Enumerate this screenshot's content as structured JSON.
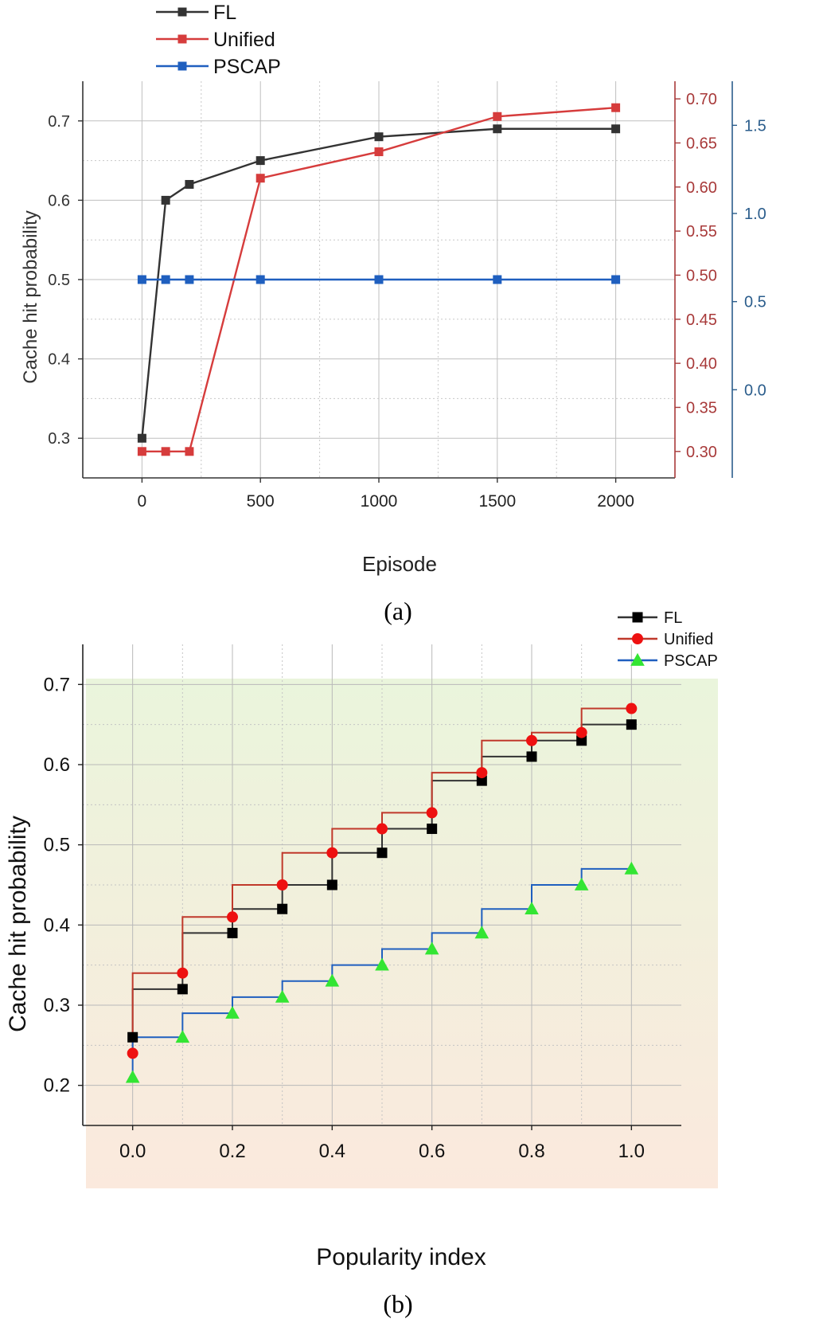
{
  "chart_data": [
    {
      "id": "a",
      "type": "line",
      "caption": "(a)",
      "xlabel": "Episode",
      "ylabel": "Cache hit probability",
      "xlim": [
        -250,
        2250
      ],
      "x_ticks": [
        "0",
        "500",
        "1000",
        "1500",
        "2000"
      ],
      "x_tick_values": [
        0,
        500,
        1000,
        1500,
        2000
      ],
      "ylim": [
        0.25,
        0.75
      ],
      "y_ticks": [
        "0.3",
        "0.4",
        "0.5",
        "0.6",
        "0.7"
      ],
      "y_tick_values": [
        0.3,
        0.4,
        0.5,
        0.6,
        0.7
      ],
      "secondary_axis_red": {
        "ylim": [
          0.27,
          0.72
        ],
        "ticks": [
          "0.30",
          "0.35",
          "0.40",
          "0.45",
          "0.50",
          "0.55",
          "0.60",
          "0.65",
          "0.70"
        ],
        "tick_values": [
          0.3,
          0.35,
          0.4,
          0.45,
          0.5,
          0.55,
          0.6,
          0.65,
          0.7
        ],
        "color": "#a83a3a"
      },
      "secondary_axis_blue": {
        "ylim": [
          -0.5,
          1.75
        ],
        "ticks": [
          "0.0",
          "0.5",
          "1.0",
          "1.5"
        ],
        "tick_values": [
          0.0,
          0.5,
          1.0,
          1.5
        ],
        "color": "#2b5d8c"
      },
      "legend_position": "top-left, outside",
      "grid": true,
      "series": [
        {
          "name": "FL",
          "color": "#333333",
          "marker": "square",
          "axis": "left",
          "x": [
            0,
            100,
            200,
            500,
            1000,
            1500,
            2000
          ],
          "y": [
            0.3,
            0.6,
            0.62,
            0.65,
            0.68,
            0.69,
            0.69
          ]
        },
        {
          "name": "Unified",
          "color": "#d63c3c",
          "marker": "square",
          "axis": "right-red",
          "x": [
            0,
            100,
            200,
            500,
            1000,
            1500,
            2000
          ],
          "y": [
            0.3,
            0.3,
            0.3,
            0.61,
            0.64,
            0.68,
            0.69
          ]
        },
        {
          "name": "PSCAP",
          "color": "#1f5fbf",
          "marker": "square",
          "axis": "left",
          "x": [
            0,
            100,
            200,
            500,
            1000,
            1500,
            2000
          ],
          "y": [
            0.5,
            0.5,
            0.5,
            0.5,
            0.5,
            0.5,
            0.5
          ]
        }
      ]
    },
    {
      "id": "b",
      "type": "line",
      "step": "pre",
      "caption": "(b)",
      "xlabel": "Popularity index",
      "ylabel": "Cache hit probability",
      "xlim": [
        -0.1,
        1.1
      ],
      "x_ticks": [
        "0.0",
        "0.2",
        "0.4",
        "0.6",
        "0.8",
        "1.0"
      ],
      "x_tick_values": [
        0.0,
        0.2,
        0.4,
        0.6,
        0.8,
        1.0
      ],
      "ylim": [
        0.15,
        0.75
      ],
      "y_ticks": [
        "0.2",
        "0.3",
        "0.4",
        "0.5",
        "0.6",
        "0.7"
      ],
      "y_tick_values": [
        0.2,
        0.3,
        0.4,
        0.5,
        0.6,
        0.7
      ],
      "background_gradient": [
        "#eaf5dc",
        "#fbe9dd"
      ],
      "legend_position": "top-right, outside",
      "grid": true,
      "x": [
        0.0,
        0.1,
        0.2,
        0.3,
        0.4,
        0.5,
        0.6,
        0.7,
        0.8,
        0.9,
        1.0
      ],
      "series": [
        {
          "name": "FL",
          "color": "#000000",
          "line_color": "#333333",
          "marker": "square",
          "values": [
            0.26,
            0.32,
            0.39,
            0.42,
            0.45,
            0.49,
            0.52,
            0.58,
            0.61,
            0.63,
            0.65
          ]
        },
        {
          "name": "Unified",
          "color": "#ee1111",
          "line_color": "#c0392b",
          "marker": "circle",
          "values": [
            0.24,
            0.34,
            0.41,
            0.45,
            0.49,
            0.52,
            0.54,
            0.59,
            0.63,
            0.64,
            0.67
          ]
        },
        {
          "name": "PSCAP",
          "color": "#33e533",
          "line_color": "#1f5fbf",
          "marker": "triangle",
          "values": [
            0.21,
            0.26,
            0.29,
            0.31,
            0.33,
            0.35,
            0.37,
            0.39,
            0.42,
            0.45,
            0.47
          ]
        }
      ]
    }
  ]
}
